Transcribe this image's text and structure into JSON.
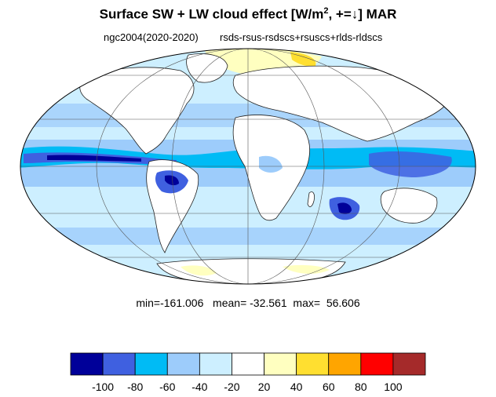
{
  "title": {
    "prefix": "Surface SW + LW cloud effect [W/m",
    "sup": "2",
    "suffix": ", +=↓]  MAR"
  },
  "subtitle": {
    "case": "ngc2004(2020-2020)",
    "formula": "rsds-rsus-rsdscs+rsuscs+rlds-rldscs"
  },
  "stats": {
    "min_label": "min=",
    "min_value": "-161.006",
    "mean_label": "mean=",
    "mean_value": "-32.561",
    "max_label": "max=",
    "max_value": "56.606"
  },
  "colorbar": {
    "colors": [
      "#000099",
      "#3f60e0",
      "#00bbf5",
      "#9dccfb",
      "#cdefff",
      "#ffffff",
      "#ffffc0",
      "#ffdf30",
      "#ffa500",
      "#ff0000",
      "#a52a2a"
    ],
    "labels": [
      "-100",
      "-80",
      "-60",
      "-40",
      "-20",
      "20",
      "40",
      "60",
      "80",
      "100"
    ]
  },
  "palette": {
    "ocean_base": "#cdefff",
    "moderate": "#9dccfb",
    "strong": "#00bbf5",
    "very_strong": "#3f60e0",
    "extreme": "#000099",
    "land_neutral": "#ffffff",
    "weak_positive": "#ffffc0",
    "positive": "#ffdf30"
  }
}
